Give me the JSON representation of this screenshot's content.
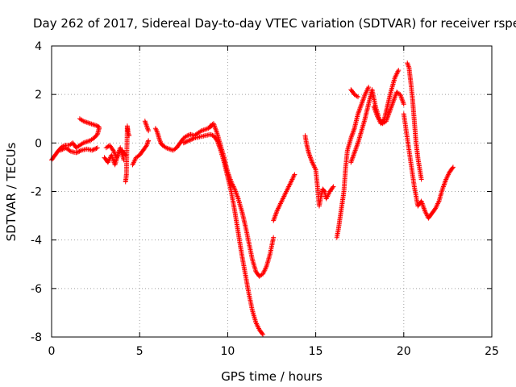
{
  "chart_data": {
    "type": "scatter",
    "title": "Day 262 of 2017, Sidereal Day-to-day VTEC variation (SDTVAR) for receiver rspe",
    "xlabel": "GPS time / hours",
    "ylabel": "SDTVAR / TECUs",
    "xlim": [
      0,
      25
    ],
    "ylim": [
      -8,
      4
    ],
    "xticks": [
      0,
      5,
      10,
      15,
      20,
      25
    ],
    "yticks": [
      -8,
      -6,
      -4,
      -2,
      0,
      2,
      4
    ],
    "grid": true,
    "marker": "+",
    "series": [
      {
        "name": "SDTVAR",
        "color": "#ff0000",
        "segments": [
          {
            "x": [
              0.0,
              0.2,
              0.4,
              0.6,
              0.8,
              1.0,
              1.2,
              1.4,
              1.6,
              1.8,
              2.0,
              2.2,
              2.4,
              2.6,
              2.7
            ],
            "y": [
              -0.7,
              -0.5,
              -0.3,
              -0.15,
              -0.1,
              -0.1,
              0.0,
              -0.2,
              -0.1,
              0.0,
              0.05,
              0.1,
              0.2,
              0.35,
              0.6
            ]
          },
          {
            "x": [
              1.6,
              1.8,
              2.0,
              2.2,
              2.4,
              2.6,
              2.7
            ],
            "y": [
              1.0,
              0.9,
              0.85,
              0.8,
              0.75,
              0.7,
              0.65
            ]
          },
          {
            "x": [
              0.5,
              0.8,
              1.1,
              1.4,
              1.7,
              2.0,
              2.3,
              2.6
            ],
            "y": [
              -0.3,
              -0.2,
              -0.35,
              -0.4,
              -0.3,
              -0.25,
              -0.3,
              -0.2
            ]
          },
          {
            "x": [
              3.0,
              3.2,
              3.4,
              3.6,
              3.8,
              4.0,
              4.2
            ],
            "y": [
              -0.6,
              -0.8,
              -0.5,
              -0.9,
              -0.4,
              -0.3,
              -0.5
            ]
          },
          {
            "x": [
              3.1,
              3.3,
              3.5,
              3.7,
              3.9,
              4.1
            ],
            "y": [
              -0.2,
              -0.1,
              -0.3,
              -0.6,
              -0.2,
              -0.7
            ]
          },
          {
            "x": [
              4.2,
              4.25,
              4.3,
              4.35,
              4.4
            ],
            "y": [
              -1.6,
              -1.3,
              0.7,
              0.4,
              0.3
            ]
          },
          {
            "x": [
              4.6,
              4.8,
              5.0,
              5.2,
              5.4,
              5.5
            ],
            "y": [
              -0.9,
              -0.6,
              -0.5,
              -0.3,
              -0.1,
              0.1
            ]
          },
          {
            "x": [
              5.3,
              5.4,
              5.5
            ],
            "y": [
              0.9,
              0.7,
              0.5
            ]
          },
          {
            "x": [
              5.9,
              6.0,
              6.1,
              6.2,
              6.3,
              6.5,
              6.7,
              6.9,
              7.1,
              7.3,
              7.5,
              7.7,
              7.9,
              8.1,
              8.3,
              8.5,
              8.7,
              8.9,
              9.1
            ],
            "y": [
              0.6,
              0.45,
              0.2,
              0.0,
              -0.1,
              -0.2,
              -0.25,
              -0.3,
              -0.2,
              0.0,
              0.2,
              0.3,
              0.35,
              0.3,
              0.4,
              0.5,
              0.55,
              0.6,
              0.7
            ]
          },
          {
            "x": [
              7.5,
              7.8,
              8.1,
              8.4,
              8.7,
              9.0,
              9.2,
              9.4,
              9.6,
              9.8,
              10.0,
              10.2,
              10.4,
              10.6,
              10.8,
              11.0,
              11.2,
              11.4,
              11.6,
              11.8,
              12.0
            ],
            "y": [
              0.0,
              0.1,
              0.2,
              0.25,
              0.3,
              0.35,
              0.3,
              0.1,
              -0.3,
              -0.8,
              -1.4,
              -2.0,
              -2.8,
              -3.7,
              -4.6,
              -5.4,
              -6.2,
              -6.9,
              -7.4,
              -7.7,
              -7.9
            ]
          },
          {
            "x": [
              9.0,
              9.2,
              9.4,
              9.6,
              9.8,
              10.0,
              10.2,
              10.4,
              10.6,
              10.8,
              11.0,
              11.2,
              11.4,
              11.6,
              11.8,
              12.0,
              12.2,
              12.4,
              12.6
            ],
            "y": [
              0.7,
              0.8,
              0.4,
              -0.1,
              -0.6,
              -1.2,
              -1.6,
              -1.9,
              -2.3,
              -2.8,
              -3.4,
              -4.1,
              -4.8,
              -5.3,
              -5.5,
              -5.4,
              -5.1,
              -4.6,
              -3.9
            ]
          },
          {
            "x": [
              12.6,
              12.8,
              13.0,
              13.2,
              13.4,
              13.6,
              13.8
            ],
            "y": [
              -3.2,
              -2.8,
              -2.5,
              -2.2,
              -1.9,
              -1.6,
              -1.3
            ]
          },
          {
            "x": [
              14.4,
              14.5,
              14.6,
              14.7,
              14.8,
              15.0,
              15.1,
              15.2,
              15.3,
              15.4,
              15.5,
              15.6,
              15.8,
              16.0
            ],
            "y": [
              0.3,
              -0.1,
              -0.4,
              -0.6,
              -0.8,
              -1.1,
              -1.8,
              -2.6,
              -2.2,
              -1.9,
              -2.0,
              -2.3,
              -2.0,
              -1.8
            ]
          },
          {
            "x": [
              16.2,
              16.3,
              16.4,
              16.5,
              16.6,
              16.7,
              16.8,
              17.0,
              17.2,
              17.4,
              17.6,
              17.8,
              18.0
            ],
            "y": [
              -3.9,
              -3.5,
              -3.0,
              -2.5,
              -2.0,
              -1.0,
              -0.3,
              0.2,
              0.6,
              1.2,
              1.6,
              2.0,
              2.3
            ]
          },
          {
            "x": [
              17.0,
              17.2,
              17.4,
              17.6,
              17.8,
              18.0,
              18.2,
              18.4,
              18.6,
              18.8,
              19.0,
              19.2,
              19.4,
              19.6,
              19.8,
              20.0
            ],
            "y": [
              -0.8,
              -0.4,
              0.0,
              0.5,
              1.0,
              1.6,
              2.2,
              1.5,
              1.0,
              0.8,
              0.9,
              1.3,
              1.7,
              2.1,
              2.0,
              1.6
            ]
          },
          {
            "x": [
              18.3,
              18.5,
              18.7,
              18.9,
              19.1,
              19.3,
              19.5,
              19.7
            ],
            "y": [
              1.5,
              1.1,
              0.8,
              1.0,
              1.6,
              2.2,
              2.7,
              3.0
            ]
          },
          {
            "x": [
              17.0,
              17.2,
              17.4
            ],
            "y": [
              2.2,
              2.0,
              1.9
            ]
          },
          {
            "x": [
              20.0,
              20.2,
              20.4,
              20.6,
              20.8,
              21.0,
              21.2,
              21.4,
              21.6,
              21.8,
              22.0,
              22.2,
              22.4,
              22.6,
              22.8
            ],
            "y": [
              1.2,
              0.2,
              -0.8,
              -1.8,
              -2.6,
              -2.4,
              -2.8,
              -3.1,
              -2.9,
              -2.7,
              -2.4,
              -1.9,
              -1.5,
              -1.2,
              -1.0
            ]
          },
          {
            "x": [
              20.2,
              20.3,
              20.4,
              20.5,
              20.6,
              20.7,
              20.8,
              21.0
            ],
            "y": [
              3.3,
              3.1,
              2.5,
              1.8,
              0.9,
              0.0,
              -0.6,
              -1.5
            ]
          }
        ]
      }
    ]
  }
}
